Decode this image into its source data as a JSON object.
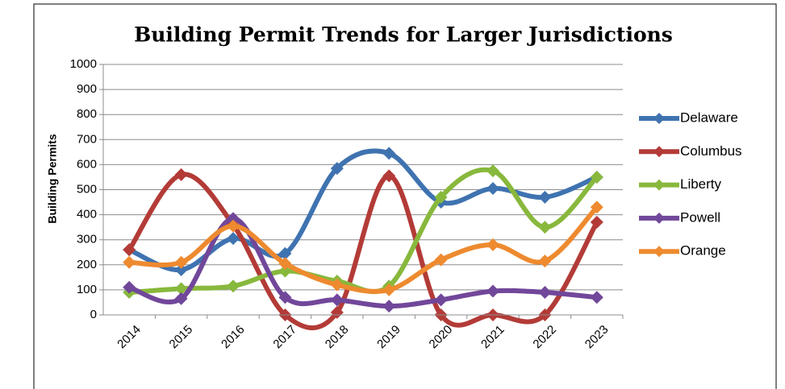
{
  "chart_data": {
    "type": "line",
    "title": "Building Permit Trends for Larger Jurisdictions",
    "y_label": "Building Permits",
    "categories": [
      "2014",
      "2015",
      "2016",
      "2017",
      "2018",
      "2019",
      "2020",
      "2021",
      "2022",
      "2023"
    ],
    "series": [
      {
        "name": "Delaware",
        "color": "#3f73b0",
        "values": [
          260,
          180,
          305,
          245,
          585,
          645,
          450,
          505,
          470,
          550
        ]
      },
      {
        "name": "Columbus",
        "color": "#b33b37",
        "values": [
          260,
          560,
          360,
          0,
          10,
          555,
          0,
          0,
          0,
          370
        ]
      },
      {
        "name": "Liberty",
        "color": "#88b83c",
        "values": [
          90,
          105,
          115,
          175,
          135,
          115,
          470,
          575,
          350,
          550
        ]
      },
      {
        "name": "Powell",
        "color": "#71479a",
        "values": [
          110,
          65,
          385,
          70,
          60,
          35,
          60,
          95,
          90,
          70
        ]
      },
      {
        "name": "Orange",
        "color": "#ee8a2f",
        "values": [
          210,
          210,
          355,
          205,
          120,
          100,
          220,
          280,
          215,
          430
        ]
      }
    ],
    "ylim": [
      0,
      1000
    ],
    "yticks": [
      0,
      100,
      200,
      300,
      400,
      500,
      600,
      700,
      800,
      900,
      1000
    ],
    "grid": true,
    "smooth": true,
    "legend": "right"
  }
}
